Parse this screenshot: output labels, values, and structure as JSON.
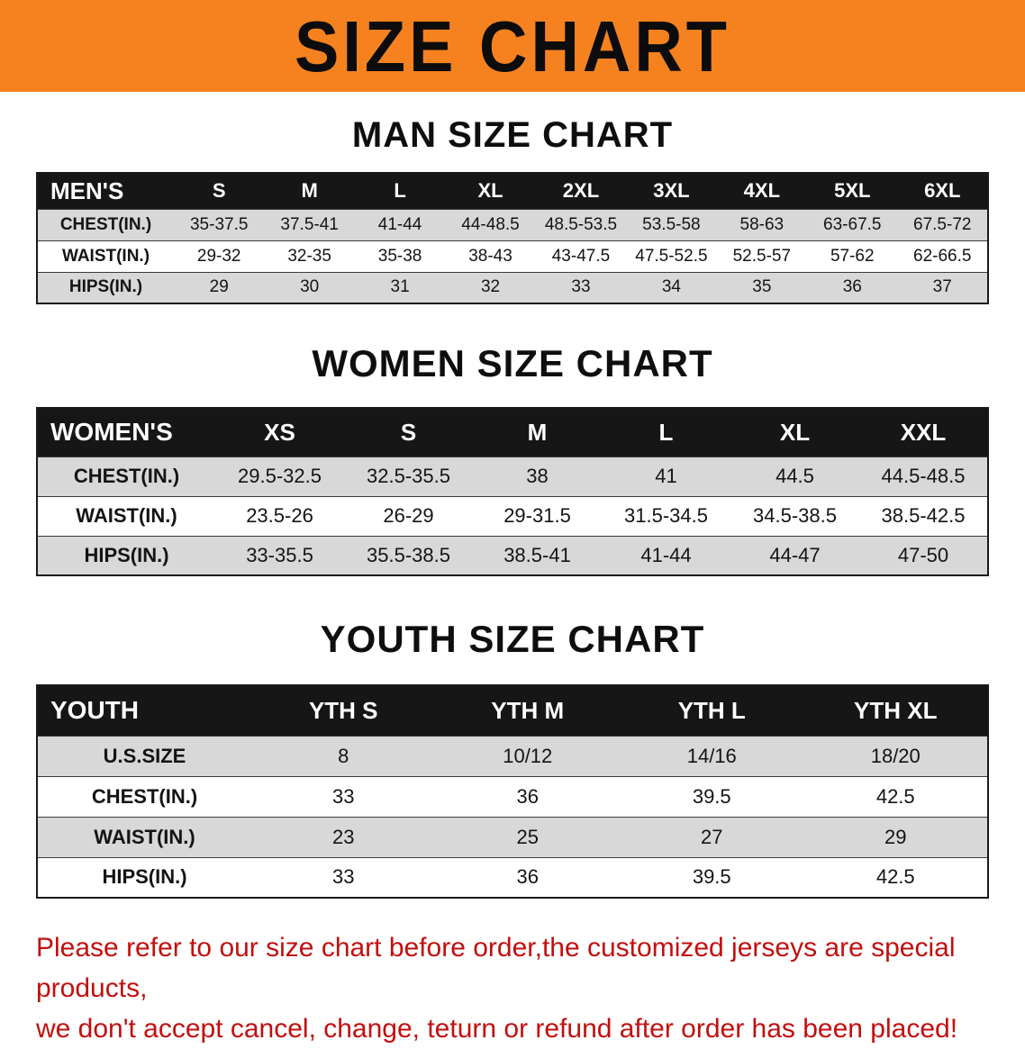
{
  "banner": {
    "title": "SIZE CHART"
  },
  "colors": {
    "banner_orange": "#f5821f",
    "header_black": "#161616",
    "row_gray": "#d8d8d8",
    "note_red": "#c20f0f"
  },
  "sections": [
    {
      "id": "men",
      "heading": "MAN SIZE CHART",
      "header": [
        "MEN'S",
        "S",
        "M",
        "L",
        "XL",
        "2XL",
        "3XL",
        "4XL",
        "5XL",
        "6XL"
      ],
      "rows": [
        {
          "label": "CHEST(IN.)",
          "values": [
            "35-37.5",
            "37.5-41",
            "41-44",
            "44-48.5",
            "48.5-53.5",
            "53.5-58",
            "58-63",
            "63-67.5",
            "67.5-72"
          ]
        },
        {
          "label": "WAIST(IN.)",
          "values": [
            "29-32",
            "32-35",
            "35-38",
            "38-43",
            "43-47.5",
            "47.5-52.5",
            "52.5-57",
            "57-62",
            "62-66.5"
          ]
        },
        {
          "label": "HIPS(IN.)",
          "values": [
            "29",
            "30",
            "31",
            "32",
            "33",
            "34",
            "35",
            "36",
            "37"
          ]
        }
      ]
    },
    {
      "id": "women",
      "heading": "WOMEN SIZE CHART",
      "header": [
        "WOMEN'S",
        "XS",
        "S",
        "M",
        "L",
        "XL",
        "XXL"
      ],
      "rows": [
        {
          "label": "CHEST(IN.)",
          "values": [
            "29.5-32.5",
            "32.5-35.5",
            "38",
            "41",
            "44.5",
            "44.5-48.5"
          ]
        },
        {
          "label": "WAIST(IN.)",
          "values": [
            "23.5-26",
            "26-29",
            "29-31.5",
            "31.5-34.5",
            "34.5-38.5",
            "38.5-42.5"
          ]
        },
        {
          "label": "HIPS(IN.)",
          "values": [
            "33-35.5",
            "35.5-38.5",
            "38.5-41",
            "41-44",
            "44-47",
            "47-50"
          ]
        }
      ]
    },
    {
      "id": "youth",
      "heading": "YOUTH SIZE CHART",
      "header": [
        "YOUTH",
        "YTH S",
        "YTH M",
        "YTH L",
        "YTH XL"
      ],
      "rows": [
        {
          "label": "U.S.SIZE",
          "values": [
            "8",
            "10/12",
            "14/16",
            "18/20"
          ]
        },
        {
          "label": "CHEST(IN.)",
          "values": [
            "33",
            "36",
            "39.5",
            "42.5"
          ]
        },
        {
          "label": "WAIST(IN.)",
          "values": [
            "23",
            "25",
            "27",
            "29"
          ]
        },
        {
          "label": "HIPS(IN.)",
          "values": [
            "33",
            "36",
            "39.5",
            "42.5"
          ]
        }
      ]
    }
  ],
  "footer": {
    "lines": [
      "Please refer to our size chart before order,the customized jerseys are special products,",
      "we don't accept cancel, change, teturn or refund after order has been placed!"
    ]
  }
}
